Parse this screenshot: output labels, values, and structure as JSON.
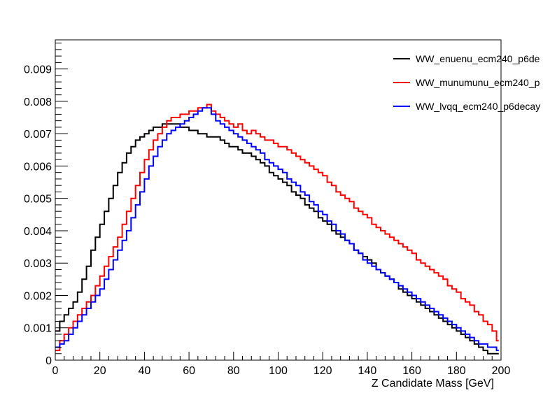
{
  "chart_data": {
    "type": "line",
    "title": "",
    "xlabel": "Z Candidate Mass [GeV]",
    "ylabel": "",
    "xlim": [
      0,
      200
    ],
    "ylim": [
      0,
      0.0099
    ],
    "x_ticks": [
      "0",
      "20",
      "40",
      "60",
      "80",
      "100",
      "120",
      "140",
      "160",
      "180",
      "200"
    ],
    "y_ticks": [
      "0",
      "0.001",
      "0.002",
      "0.003",
      "0.004",
      "0.005",
      "0.006",
      "0.007",
      "0.008",
      "0.009"
    ],
    "grid": false,
    "legend_position": "top-right",
    "style": "step-histogram",
    "bin_width": 1,
    "series": [
      {
        "name": "WW_enuenu_ecm240_p6de",
        "color": "#000000",
        "x": [
          0,
          2,
          4,
          6,
          8,
          10,
          12,
          14,
          16,
          18,
          20,
          22,
          24,
          26,
          28,
          30,
          32,
          34,
          36,
          38,
          40,
          42,
          44,
          46,
          48,
          50,
          52,
          54,
          56,
          58,
          60,
          62,
          64,
          66,
          68,
          70,
          72,
          74,
          76,
          78,
          80,
          82,
          84,
          86,
          88,
          90,
          92,
          94,
          96,
          98,
          100,
          102,
          104,
          106,
          108,
          110,
          112,
          114,
          116,
          118,
          120,
          122,
          124,
          126,
          128,
          130,
          132,
          134,
          136,
          138,
          140,
          142,
          144,
          146,
          148,
          150,
          152,
          154,
          156,
          158,
          160,
          162,
          164,
          166,
          168,
          170,
          172,
          174,
          176,
          178,
          180,
          182,
          184,
          186,
          188,
          190,
          192,
          194,
          196,
          198
        ],
        "values": [
          0.0009,
          0.0012,
          0.0014,
          0.0016,
          0.0018,
          0.0021,
          0.0025,
          0.0029,
          0.0034,
          0.0038,
          0.0042,
          0.0046,
          0.005,
          0.0054,
          0.0058,
          0.0061,
          0.0064,
          0.0066,
          0.0068,
          0.0069,
          0.007,
          0.0071,
          0.0072,
          0.0072,
          0.0073,
          0.0073,
          0.0073,
          0.0073,
          0.0072,
          0.0072,
          0.0071,
          0.0071,
          0.007,
          0.007,
          0.0069,
          0.0069,
          0.0069,
          0.0068,
          0.0067,
          0.0066,
          0.0066,
          0.0065,
          0.0064,
          0.0064,
          0.0063,
          0.0062,
          0.0061,
          0.006,
          0.0058,
          0.0057,
          0.0056,
          0.0055,
          0.0054,
          0.0052,
          0.0051,
          0.005,
          0.0048,
          0.0047,
          0.0046,
          0.0044,
          0.0043,
          0.0042,
          0.004,
          0.0039,
          0.0038,
          0.0037,
          0.0036,
          0.0034,
          0.0033,
          0.0032,
          0.0031,
          0.003,
          0.0028,
          0.0027,
          0.0026,
          0.0025,
          0.0024,
          0.0022,
          0.0021,
          0.002,
          0.0019,
          0.0018,
          0.0017,
          0.0016,
          0.0015,
          0.0014,
          0.0013,
          0.0012,
          0.0011,
          0.001,
          0.0009,
          0.0008,
          0.0007,
          0.0006,
          0.0005,
          0.0004,
          0.0003,
          0.0002,
          0.0002,
          0.0002
        ]
      },
      {
        "name": "WW_munumunu_ecm240_p",
        "color": "#ff0000",
        "x": [
          0,
          2,
          4,
          6,
          8,
          10,
          12,
          14,
          16,
          18,
          20,
          22,
          24,
          26,
          28,
          30,
          32,
          34,
          36,
          38,
          40,
          42,
          44,
          46,
          48,
          50,
          52,
          54,
          56,
          58,
          60,
          62,
          64,
          66,
          68,
          70,
          72,
          74,
          76,
          78,
          80,
          82,
          84,
          86,
          88,
          90,
          92,
          94,
          96,
          98,
          100,
          102,
          104,
          106,
          108,
          110,
          112,
          114,
          116,
          118,
          120,
          122,
          124,
          126,
          128,
          130,
          132,
          134,
          136,
          138,
          140,
          142,
          144,
          146,
          148,
          150,
          152,
          154,
          156,
          158,
          160,
          162,
          164,
          166,
          168,
          170,
          172,
          174,
          176,
          178,
          180,
          182,
          184,
          186,
          188,
          190,
          192,
          194,
          196,
          198
        ],
        "values": [
          0.0003,
          0.0006,
          0.0008,
          0.001,
          0.0012,
          0.0014,
          0.0016,
          0.0018,
          0.002,
          0.0023,
          0.0026,
          0.0029,
          0.0032,
          0.0035,
          0.0038,
          0.0042,
          0.0046,
          0.005,
          0.0054,
          0.0058,
          0.0062,
          0.0065,
          0.0068,
          0.007,
          0.0072,
          0.0074,
          0.0075,
          0.0075,
          0.0076,
          0.0076,
          0.0077,
          0.0077,
          0.0078,
          0.0078,
          0.0079,
          0.0077,
          0.0076,
          0.0075,
          0.0074,
          0.0073,
          0.0072,
          0.0073,
          0.0071,
          0.007,
          0.0071,
          0.007,
          0.0069,
          0.0068,
          0.0068,
          0.0067,
          0.0066,
          0.0066,
          0.0065,
          0.0064,
          0.0063,
          0.0062,
          0.0061,
          0.006,
          0.0059,
          0.0058,
          0.0057,
          0.0055,
          0.0054,
          0.0052,
          0.0051,
          0.005,
          0.0049,
          0.0047,
          0.0046,
          0.0045,
          0.0044,
          0.0042,
          0.0041,
          0.004,
          0.0039,
          0.0038,
          0.0037,
          0.0036,
          0.0035,
          0.0034,
          0.0033,
          0.0031,
          0.003,
          0.0029,
          0.0028,
          0.0027,
          0.0026,
          0.0025,
          0.0023,
          0.0022,
          0.0021,
          0.0019,
          0.0018,
          0.0017,
          0.0015,
          0.0014,
          0.0012,
          0.0011,
          0.0009,
          0.0006
        ]
      },
      {
        "name": "WW_lvqq_ecm240_p6decay",
        "color": "#0000ff",
        "x": [
          0,
          2,
          4,
          6,
          8,
          10,
          12,
          14,
          16,
          18,
          20,
          22,
          24,
          26,
          28,
          30,
          32,
          34,
          36,
          38,
          40,
          42,
          44,
          46,
          48,
          50,
          52,
          54,
          56,
          58,
          60,
          62,
          64,
          66,
          68,
          70,
          72,
          74,
          76,
          78,
          80,
          82,
          84,
          86,
          88,
          90,
          92,
          94,
          96,
          98,
          100,
          102,
          104,
          106,
          108,
          110,
          112,
          114,
          116,
          118,
          120,
          122,
          124,
          126,
          128,
          130,
          132,
          134,
          136,
          138,
          140,
          142,
          144,
          146,
          148,
          150,
          152,
          154,
          156,
          158,
          160,
          162,
          164,
          166,
          168,
          170,
          172,
          174,
          176,
          178,
          180,
          182,
          184,
          186,
          188,
          190,
          192,
          194,
          196,
          198
        ],
        "values": [
          0.0004,
          0.0005,
          0.0006,
          0.0008,
          0.001,
          0.0012,
          0.0014,
          0.0016,
          0.0018,
          0.002,
          0.0022,
          0.0025,
          0.0028,
          0.0031,
          0.0034,
          0.0037,
          0.004,
          0.0044,
          0.0048,
          0.0052,
          0.0056,
          0.006,
          0.0063,
          0.0066,
          0.0068,
          0.007,
          0.0071,
          0.0072,
          0.0073,
          0.0074,
          0.0075,
          0.0076,
          0.0077,
          0.0078,
          0.0078,
          0.0076,
          0.0074,
          0.0073,
          0.0072,
          0.0071,
          0.007,
          0.0069,
          0.0068,
          0.0067,
          0.0066,
          0.0065,
          0.0064,
          0.0062,
          0.0061,
          0.006,
          0.0059,
          0.0058,
          0.0056,
          0.0055,
          0.0054,
          0.0052,
          0.0051,
          0.0049,
          0.0048,
          0.0046,
          0.0045,
          0.0043,
          0.0042,
          0.004,
          0.0039,
          0.0037,
          0.0036,
          0.0034,
          0.0033,
          0.0031,
          0.003,
          0.0029,
          0.0028,
          0.0027,
          0.0026,
          0.0025,
          0.0024,
          0.0023,
          0.0022,
          0.0021,
          0.002,
          0.0019,
          0.0018,
          0.0017,
          0.0016,
          0.0015,
          0.0014,
          0.0013,
          0.0012,
          0.0011,
          0.001,
          0.0009,
          0.0008,
          0.0007,
          0.0006,
          0.0005,
          0.0005,
          0.0004,
          0.0004,
          0.0003
        ]
      }
    ]
  }
}
